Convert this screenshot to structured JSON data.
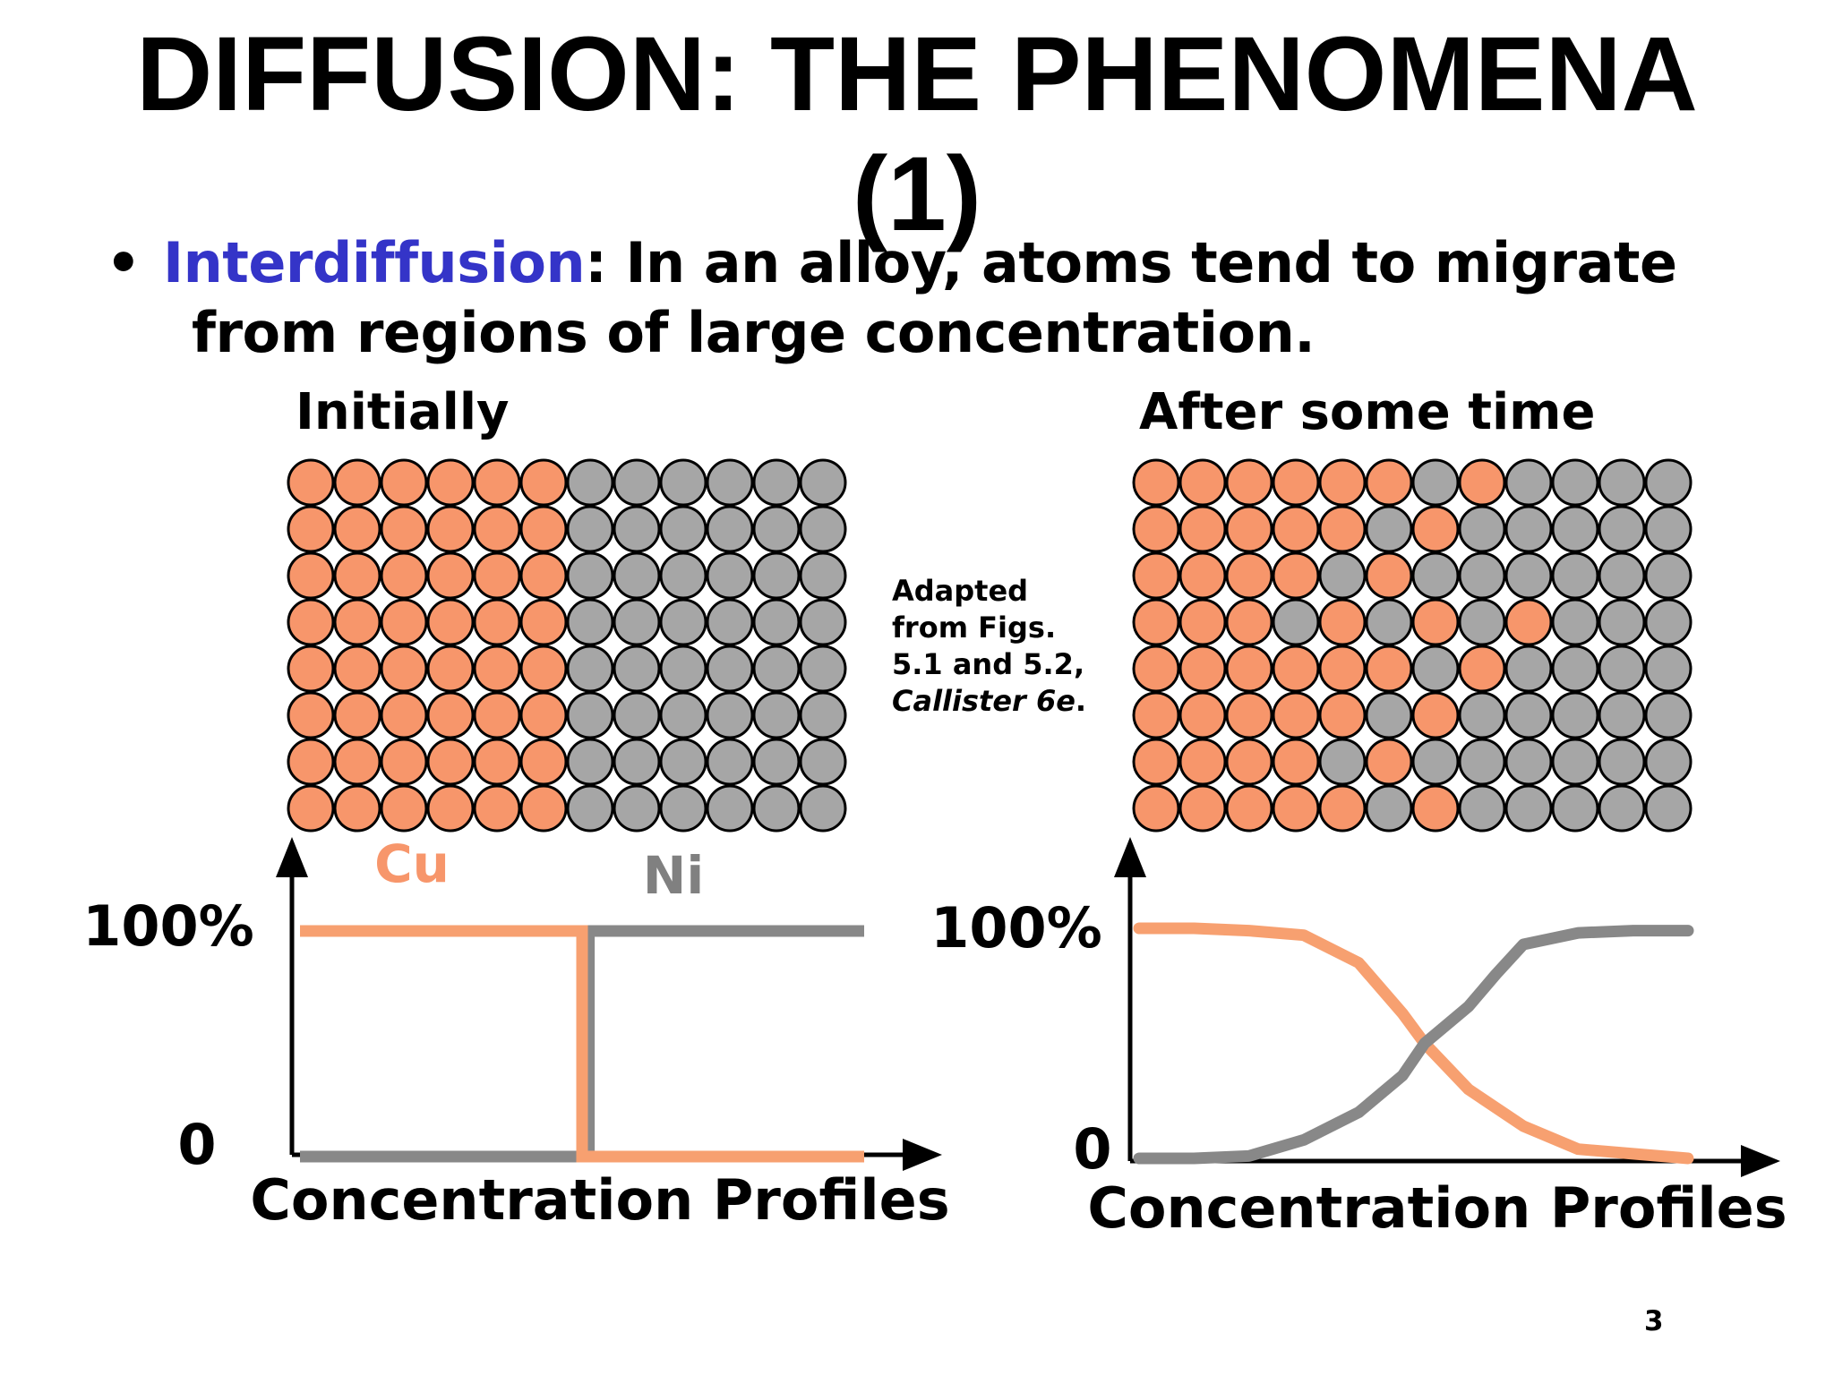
{
  "title": {
    "line1": "DIFFUSION:  THE PHENOMENA",
    "line2": "(1)"
  },
  "bullet": {
    "marker": "•",
    "term": "Interdiffusion",
    "text_line1": ":  In an alloy, atoms tend to migrate",
    "text_line2": "from regions of large concentration."
  },
  "panels": {
    "initial": {
      "label": "Initially"
    },
    "after": {
      "label": "After some time"
    }
  },
  "credit": {
    "line1": "Adapted",
    "line2": "from Figs.",
    "line3": "5.1 and 5.2,",
    "line4_italic": "Callister 6e",
    "line4_end": "."
  },
  "colors": {
    "cu": "#f7966b",
    "ni": "#a6a6a6",
    "cu_line": "#f7a070",
    "ni_line": "#888888",
    "term": "#3434c8"
  },
  "lattices": {
    "initial": [
      "CCCCCCNNNNNN",
      "CCCCCCNNNNNN",
      "CCCCCCNNNNNN",
      "CCCCCCNNNNNN",
      "CCCCCCNNNNNN",
      "CCCCCCNNNNNN",
      "CCCCCCNNNNNN",
      "CCCCCCNNNNNN"
    ],
    "after": [
      "CCCCCCNCNNNN",
      "CCCCCNCNNNNN",
      "CCCCNCNNNNNN",
      "CCCNCNCNCNNN",
      "CCCCCCNCNNNN",
      "CCCCCNCNNNNN",
      "CCCCNCNNNNNN",
      "CCCCCNCNNNNN"
    ]
  },
  "chart_data": [
    {
      "type": "line",
      "xlabel": "Concentration Profiles",
      "y_ticks": [
        "100%",
        "0"
      ],
      "ylim": [
        0,
        100
      ],
      "xlim": [
        0,
        1
      ],
      "series": [
        {
          "name": "Cu",
          "points": [
            [
              0,
              100
            ],
            [
              0.5,
              100
            ],
            [
              0.5,
              0
            ],
            [
              1,
              0
            ]
          ]
        },
        {
          "name": "Ni",
          "points": [
            [
              0,
              0
            ],
            [
              0.5,
              0
            ],
            [
              0.5,
              100
            ],
            [
              1,
              100
            ]
          ]
        }
      ]
    },
    {
      "type": "line",
      "xlabel": "Concentration Profiles",
      "y_ticks": [
        "100%",
        "0"
      ],
      "ylim": [
        0,
        100
      ],
      "xlim": [
        0,
        1
      ],
      "series": [
        {
          "name": "",
          "points": [
            [
              0,
              100
            ],
            [
              0.1,
              100
            ],
            [
              0.2,
              99
            ],
            [
              0.3,
              97
            ],
            [
              0.4,
              85
            ],
            [
              0.48,
              63
            ],
            [
              0.52,
              50
            ],
            [
              0.6,
              30
            ],
            [
              0.7,
              14
            ],
            [
              0.8,
              4
            ],
            [
              0.9,
              2
            ],
            [
              1,
              0
            ]
          ]
        },
        {
          "name": "",
          "points": [
            [
              0,
              0
            ],
            [
              0.1,
              0
            ],
            [
              0.2,
              1
            ],
            [
              0.3,
              8
            ],
            [
              0.4,
              20
            ],
            [
              0.48,
              36
            ],
            [
              0.52,
              50
            ],
            [
              0.6,
              66
            ],
            [
              0.65,
              80
            ],
            [
              0.7,
              93
            ],
            [
              0.8,
              98
            ],
            [
              0.9,
              99
            ],
            [
              1,
              99
            ]
          ]
        }
      ]
    }
  ]
}
